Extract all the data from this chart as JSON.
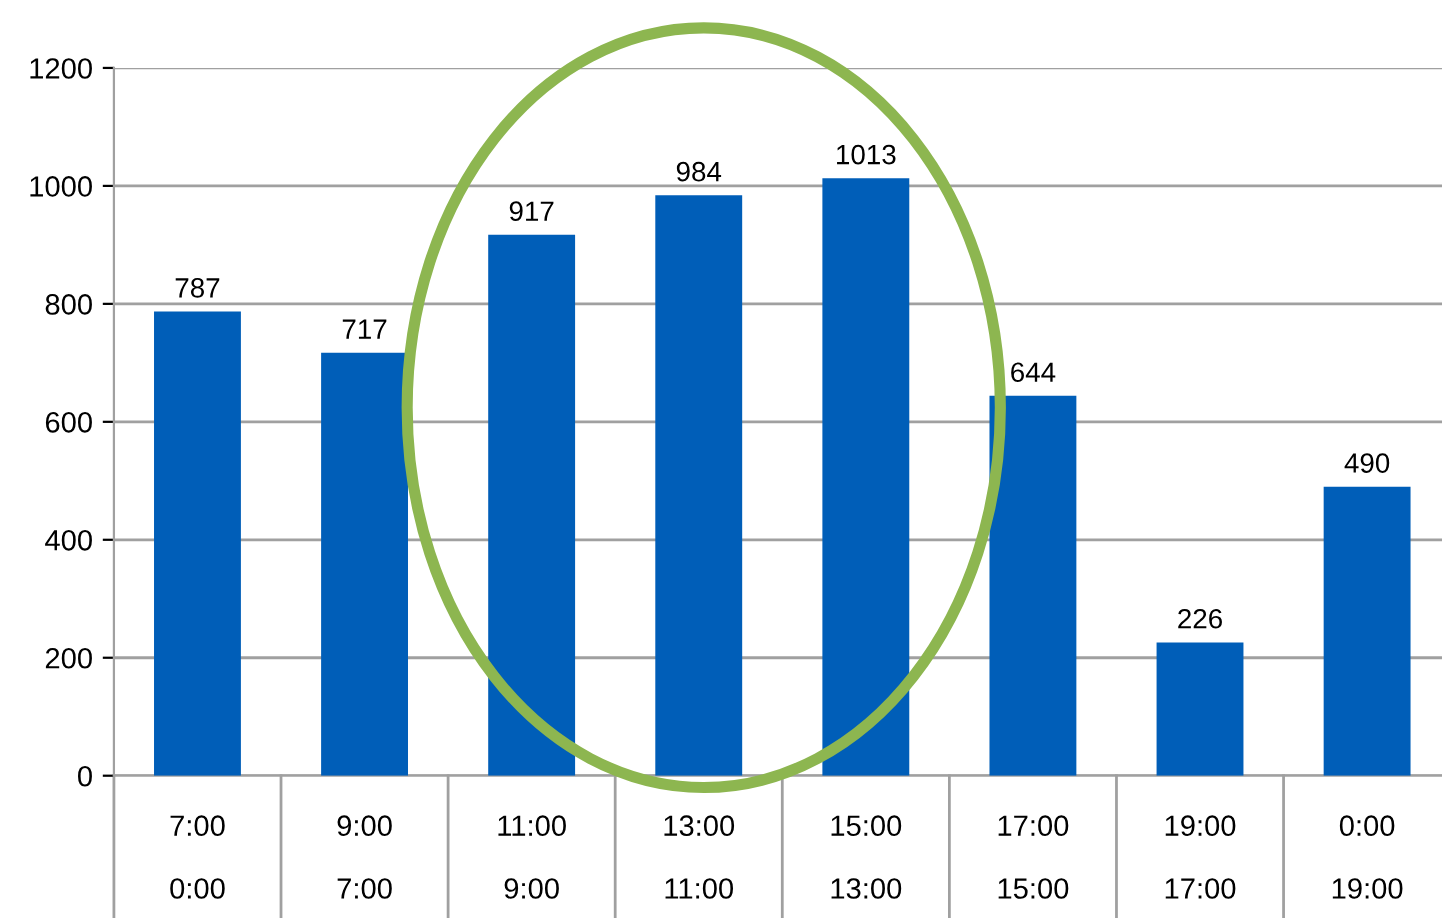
{
  "chart_data": {
    "type": "bar",
    "categories": [
      "7:00\n\n0:00",
      "9:00\n\n7:00",
      "11:00\n\n9:00",
      "13:00\n\n11:00",
      "15:00\n\n13:00",
      "17:00\n\n15:00",
      "19:00\n\n17:00",
      "0:00\n\n19:00"
    ],
    "values": [
      787,
      717,
      917,
      984,
      1013,
      644,
      226,
      490
    ],
    "color": "#005eb8",
    "ylim": [
      0,
      1200
    ],
    "yticks": [
      0,
      200,
      400,
      600,
      800,
      1000,
      1200
    ],
    "grid": "y",
    "data_labels": true
  }
}
